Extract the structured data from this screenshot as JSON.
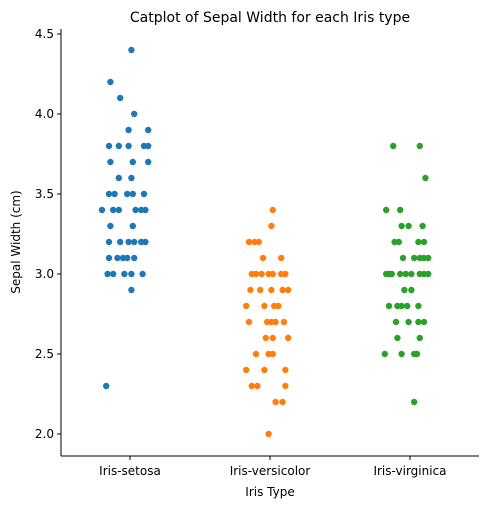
{
  "chart_data": {
    "type": "scatter",
    "title": "Catplot of Sepal Width for each Iris type",
    "xlabel": "Iris Type",
    "ylabel": "Sepal Width (cm)",
    "ylim": [
      1.86,
      4.52
    ],
    "yticks": [
      2.0,
      2.5,
      3.0,
      3.5,
      4.0,
      4.5
    ],
    "ytick_labels": [
      "2.0",
      "2.5",
      "3.0",
      "3.5",
      "4.0",
      "4.5"
    ],
    "categories": [
      "Iris-setosa",
      "Iris-versicolor",
      "Iris-virginica"
    ],
    "grid": false,
    "legend": "none",
    "series": [
      {
        "color": "#1f77b4",
        "points": [
          {
            "j": 0.01,
            "y": 4.4
          },
          {
            "j": -0.14,
            "y": 4.2
          },
          {
            "j": -0.07,
            "y": 4.1
          },
          {
            "j": 0.03,
            "y": 4.0
          },
          {
            "j": -0.01,
            "y": 3.9
          },
          {
            "j": 0.13,
            "y": 3.9
          },
          {
            "j": -0.15,
            "y": 3.8
          },
          {
            "j": -0.08,
            "y": 3.8
          },
          {
            "j": -0.01,
            "y": 3.8
          },
          {
            "j": 0.1,
            "y": 3.8
          },
          {
            "j": 0.13,
            "y": 3.8
          },
          {
            "j": -0.14,
            "y": 3.7
          },
          {
            "j": 0.02,
            "y": 3.7
          },
          {
            "j": 0.13,
            "y": 3.7
          },
          {
            "j": -0.08,
            "y": 3.6
          },
          {
            "j": 0.01,
            "y": 3.6
          },
          {
            "j": -0.15,
            "y": 3.5
          },
          {
            "j": -0.11,
            "y": 3.5
          },
          {
            "j": -0.02,
            "y": 3.5
          },
          {
            "j": 0.02,
            "y": 3.5
          },
          {
            "j": 0.1,
            "y": 3.5
          },
          {
            "j": -0.2,
            "y": 3.4
          },
          {
            "j": -0.12,
            "y": 3.4
          },
          {
            "j": -0.08,
            "y": 3.4
          },
          {
            "j": 0.04,
            "y": 3.4
          },
          {
            "j": 0.08,
            "y": 3.4
          },
          {
            "j": 0.11,
            "y": 3.4
          },
          {
            "j": -0.14,
            "y": 3.3
          },
          {
            "j": 0.02,
            "y": 3.3
          },
          {
            "j": -0.15,
            "y": 3.2
          },
          {
            "j": -0.07,
            "y": 3.2
          },
          {
            "j": -0.01,
            "y": 3.2
          },
          {
            "j": 0.03,
            "y": 3.2
          },
          {
            "j": 0.08,
            "y": 3.2
          },
          {
            "j": 0.11,
            "y": 3.2
          },
          {
            "j": -0.15,
            "y": 3.1
          },
          {
            "j": -0.09,
            "y": 3.1
          },
          {
            "j": -0.05,
            "y": 3.1
          },
          {
            "j": -0.02,
            "y": 3.1
          },
          {
            "j": 0.03,
            "y": 3.1
          },
          {
            "j": -0.16,
            "y": 3.0
          },
          {
            "j": -0.12,
            "y": 3.0
          },
          {
            "j": -0.04,
            "y": 3.0
          },
          {
            "j": 0.01,
            "y": 3.0
          },
          {
            "j": 0.09,
            "y": 3.0
          },
          {
            "j": 0.01,
            "y": 2.9
          },
          {
            "j": -0.17,
            "y": 2.3
          }
        ]
      },
      {
        "color": "#ff7f0e",
        "points": [
          {
            "j": 0.02,
            "y": 3.4
          },
          {
            "j": 0.01,
            "y": 3.3
          },
          {
            "j": -0.15,
            "y": 3.2
          },
          {
            "j": -0.11,
            "y": 3.2
          },
          {
            "j": -0.08,
            "y": 3.2
          },
          {
            "j": -0.05,
            "y": 3.1
          },
          {
            "j": 0.08,
            "y": 3.1
          },
          {
            "j": -0.13,
            "y": 3.0
          },
          {
            "j": -0.1,
            "y": 3.0
          },
          {
            "j": -0.06,
            "y": 3.0
          },
          {
            "j": -0.01,
            "y": 3.0
          },
          {
            "j": 0.02,
            "y": 3.0
          },
          {
            "j": 0.08,
            "y": 3.0
          },
          {
            "j": 0.11,
            "y": 3.0
          },
          {
            "j": -0.14,
            "y": 2.9
          },
          {
            "j": -0.07,
            "y": 2.9
          },
          {
            "j": 0.01,
            "y": 2.9
          },
          {
            "j": 0.09,
            "y": 2.9
          },
          {
            "j": 0.13,
            "y": 2.9
          },
          {
            "j": -0.17,
            "y": 2.8
          },
          {
            "j": -0.04,
            "y": 2.8
          },
          {
            "j": 0.03,
            "y": 2.8
          },
          {
            "j": 0.06,
            "y": 2.8
          },
          {
            "j": -0.15,
            "y": 2.7
          },
          {
            "j": -0.02,
            "y": 2.7
          },
          {
            "j": 0.01,
            "y": 2.7
          },
          {
            "j": 0.04,
            "y": 2.7
          },
          {
            "j": 0.1,
            "y": 2.7
          },
          {
            "j": -0.03,
            "y": 2.6
          },
          {
            "j": 0.02,
            "y": 2.6
          },
          {
            "j": 0.13,
            "y": 2.6
          },
          {
            "j": -0.1,
            "y": 2.5
          },
          {
            "j": -0.01,
            "y": 2.5
          },
          {
            "j": 0.02,
            "y": 2.5
          },
          {
            "j": -0.17,
            "y": 2.4
          },
          {
            "j": -0.04,
            "y": 2.4
          },
          {
            "j": 0.11,
            "y": 2.4
          },
          {
            "j": -0.13,
            "y": 2.3
          },
          {
            "j": -0.09,
            "y": 2.3
          },
          {
            "j": 0.11,
            "y": 2.3
          },
          {
            "j": 0.04,
            "y": 2.2
          },
          {
            "j": 0.09,
            "y": 2.2
          },
          {
            "j": -0.01,
            "y": 2.0
          }
        ]
      },
      {
        "color": "#2ca02c",
        "points": [
          {
            "j": -0.12,
            "y": 3.8
          },
          {
            "j": 0.07,
            "y": 3.8
          },
          {
            "j": 0.11,
            "y": 3.6
          },
          {
            "j": -0.17,
            "y": 3.4
          },
          {
            "j": -0.07,
            "y": 3.4
          },
          {
            "j": -0.06,
            "y": 3.3
          },
          {
            "j": -0.01,
            "y": 3.3
          },
          {
            "j": 0.09,
            "y": 3.3
          },
          {
            "j": -0.11,
            "y": 3.2
          },
          {
            "j": -0.08,
            "y": 3.2
          },
          {
            "j": 0.06,
            "y": 3.2
          },
          {
            "j": 0.1,
            "y": 3.2
          },
          {
            "j": -0.05,
            "y": 3.1
          },
          {
            "j": 0.03,
            "y": 3.1
          },
          {
            "j": 0.07,
            "y": 3.1
          },
          {
            "j": 0.1,
            "y": 3.1
          },
          {
            "j": 0.13,
            "y": 3.1
          },
          {
            "j": -0.17,
            "y": 3.0
          },
          {
            "j": -0.15,
            "y": 3.0
          },
          {
            "j": -0.13,
            "y": 3.0
          },
          {
            "j": -0.07,
            "y": 3.0
          },
          {
            "j": -0.03,
            "y": 3.0
          },
          {
            "j": 0.01,
            "y": 3.0
          },
          {
            "j": 0.07,
            "y": 3.0
          },
          {
            "j": 0.1,
            "y": 3.0
          },
          {
            "j": 0.13,
            "y": 3.0
          },
          {
            "j": -0.04,
            "y": 2.9
          },
          {
            "j": 0.01,
            "y": 2.9
          },
          {
            "j": -0.15,
            "y": 2.8
          },
          {
            "j": -0.09,
            "y": 2.8
          },
          {
            "j": -0.06,
            "y": 2.8
          },
          {
            "j": -0.02,
            "y": 2.8
          },
          {
            "j": 0.06,
            "y": 2.8
          },
          {
            "j": -0.1,
            "y": 2.7
          },
          {
            "j": -0.01,
            "y": 2.7
          },
          {
            "j": 0.06,
            "y": 2.7
          },
          {
            "j": 0.1,
            "y": 2.7
          },
          {
            "j": -0.09,
            "y": 2.6
          },
          {
            "j": 0.07,
            "y": 2.6
          },
          {
            "j": -0.18,
            "y": 2.5
          },
          {
            "j": -0.06,
            "y": 2.5
          },
          {
            "j": 0.03,
            "y": 2.5
          },
          {
            "j": 0.05,
            "y": 2.5
          },
          {
            "j": 0.03,
            "y": 2.2
          }
        ]
      }
    ]
  }
}
